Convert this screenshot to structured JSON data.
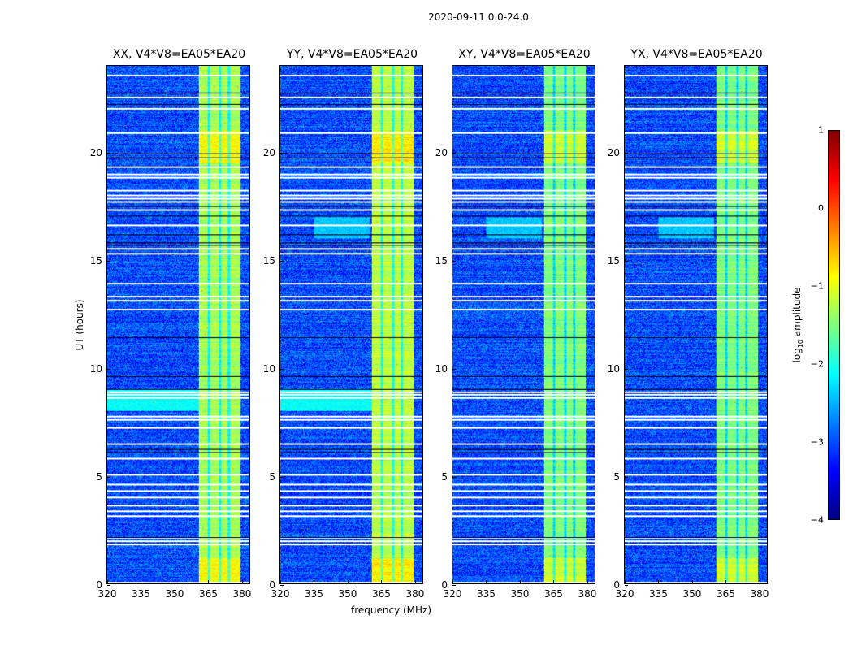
{
  "chart_data": {
    "type": "heatmap",
    "suptitle": "2020-09-11 0.0-24.0",
    "xlabel": "frequency (MHz)",
    "ylabel": "UT (hours)",
    "xlim": [
      320,
      384
    ],
    "ylim": [
      0,
      24
    ],
    "xticks": [
      "320",
      "335",
      "350",
      "365",
      "380"
    ],
    "xtick_values": [
      320,
      335,
      350,
      365,
      380
    ],
    "yticks": [
      "0",
      "5",
      "10",
      "15",
      "20"
    ],
    "ytick_values": [
      0,
      5,
      10,
      15,
      20
    ],
    "panels": [
      {
        "title": "XX, V4*V8=EA05*EA20",
        "band_level": -1.3
      },
      {
        "title": "YY, V4*V8=EA05*EA20",
        "band_level": -1.2
      },
      {
        "title": "XY, V4*V8=EA05*EA20",
        "band_level": -1.5
      },
      {
        "title": "YX, V4*V8=EA05*EA20",
        "band_level": -1.5
      }
    ],
    "background_level": -3.0,
    "band_range_mhz": [
      361,
      380
    ],
    "flagged_white_ut": [
      0.05,
      1.8,
      1.95,
      2.1,
      3.1,
      3.35,
      3.6,
      4.0,
      4.3,
      4.6,
      5.05,
      5.8,
      6.45,
      7.2,
      7.6,
      7.75,
      8.6,
      8.75,
      8.85,
      12.7,
      13.1,
      13.3,
      13.9,
      15.3,
      15.5,
      16.6,
      17.3,
      17.7,
      17.85,
      18.0,
      18.2,
      18.8,
      18.95,
      19.3,
      20.9,
      22.0,
      22.55,
      23.55
    ],
    "flagged_black_ut": [
      2.15,
      6.1,
      6.25,
      9.0,
      9.6,
      11.4,
      15.7,
      15.8,
      16.2,
      17.05,
      17.5,
      19.75,
      19.95,
      22.25,
      22.75
    ],
    "colorbar": {
      "label": "log10 amplitude",
      "label_main": "log",
      "label_sub": "10",
      "label_rest": " amplitude",
      "range": [
        -4,
        1
      ],
      "ticks": [
        "1",
        "0",
        "−1",
        "−2",
        "−3",
        "−4"
      ],
      "tick_values": [
        1,
        0,
        -1,
        -2,
        -3,
        -4
      ],
      "colormap": "jet"
    }
  }
}
